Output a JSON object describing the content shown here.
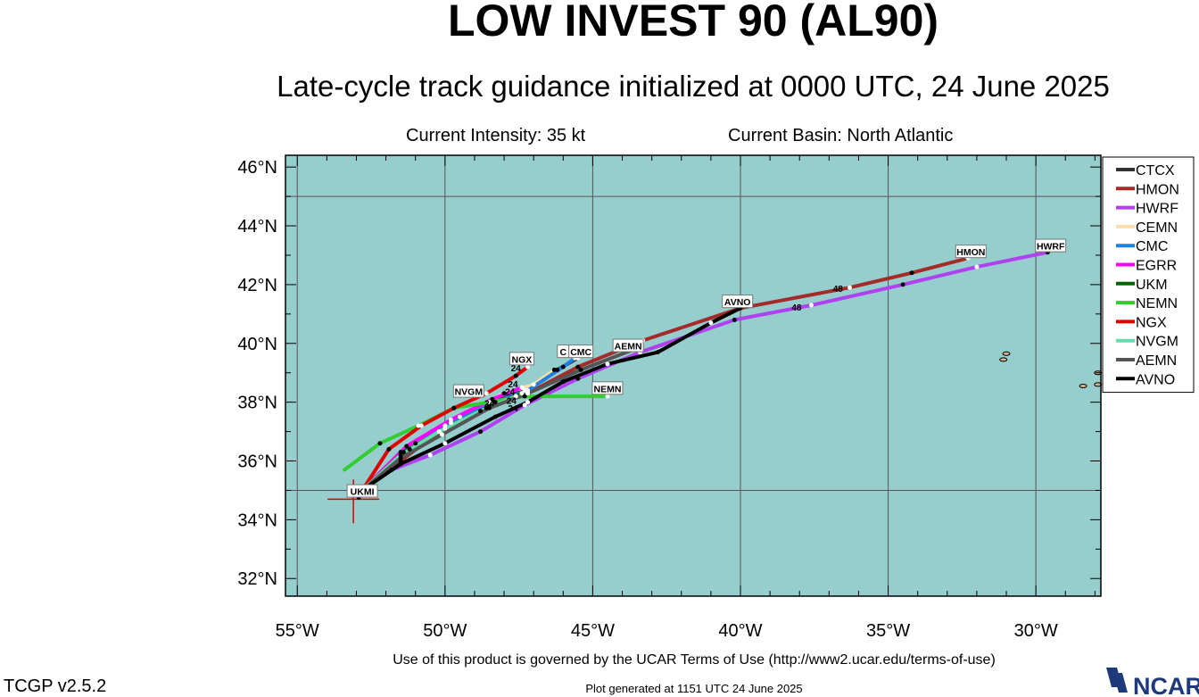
{
  "header": {
    "title": "LOW INVEST 90 (AL90)",
    "subtitle": "Late-cycle track guidance initialized at 0000 UTC, 24 June 2025",
    "intensity": "Current Intensity: 35 kt",
    "basin": "Current Basin: North Atlantic"
  },
  "footer": {
    "terms": "Use of this product is governed by the UCAR Terms of Use (http://www2.ucar.edu/terms-of-use)",
    "generated": "Plot generated at 1151 UTC   24 June 2025",
    "version": "TCGP v2.5.2",
    "logo_text": "NCAR"
  },
  "chart_data": {
    "type": "line",
    "x_axis": {
      "range": [
        -55.4,
        -27.8
      ],
      "ticks": [
        -55,
        -50,
        -45,
        -40,
        -35,
        -30
      ],
      "tick_labels": [
        "55°W",
        "50°W",
        "45°W",
        "40°W",
        "35°W",
        "30°W"
      ]
    },
    "y_axis": {
      "range": [
        31.4,
        46.4
      ],
      "ticks": [
        32,
        34,
        36,
        38,
        40,
        42,
        44,
        46
      ],
      "tick_labels": [
        "32°N",
        "34°N",
        "36°N",
        "38°N",
        "40°N",
        "42°N",
        "44°N",
        "46°N"
      ]
    },
    "grid": true,
    "colors": {
      "ocean": "#96cdcd",
      "grid": "#555555",
      "land": "#d2b48c"
    },
    "legend_position": "right",
    "initial_position": {
      "lon": -53.1,
      "lat": 34.7
    },
    "series": [
      {
        "name": "CTCX",
        "color": "#333333",
        "points": [
          [
            -52.8,
            35.0
          ],
          [
            -51.5,
            36.3
          ],
          [
            -50.0,
            37.2
          ],
          [
            -48.5,
            38.0
          ],
          [
            -47.3,
            38.4
          ],
          [
            -46.2,
            39.1
          ],
          [
            -45.5,
            39.5
          ]
        ]
      },
      {
        "name": "HMON",
        "color": "#a52a2a",
        "points": [
          [
            -52.8,
            35.0
          ],
          [
            -51.5,
            36.0
          ],
          [
            -50.2,
            37.0
          ],
          [
            -48.5,
            37.9
          ],
          [
            -47.2,
            38.3
          ],
          [
            -45.5,
            39.2
          ],
          [
            -43.3,
            40.1
          ],
          [
            -40.0,
            41.2
          ],
          [
            -36.3,
            41.9
          ],
          [
            -34.2,
            42.4
          ],
          [
            -32.3,
            42.9
          ]
        ]
      },
      {
        "name": "HWRF",
        "color": "#b040f0",
        "points": [
          [
            -52.8,
            35.0
          ],
          [
            -51.8,
            35.7
          ],
          [
            -50.5,
            36.2
          ],
          [
            -48.8,
            37.0
          ],
          [
            -47.3,
            37.9
          ],
          [
            -45.5,
            38.8
          ],
          [
            -43.4,
            39.7
          ],
          [
            -40.2,
            40.8
          ],
          [
            -37.6,
            41.3
          ],
          [
            -34.5,
            42.0
          ],
          [
            -32.0,
            42.6
          ],
          [
            -29.6,
            43.1
          ]
        ]
      },
      {
        "name": "CEMN",
        "color": "#ffdead",
        "points": [
          [
            -52.8,
            35.0
          ],
          [
            -51.0,
            36.6
          ],
          [
            -49.5,
            37.5
          ],
          [
            -48.0,
            38.3
          ],
          [
            -47.0,
            38.6
          ],
          [
            -46.3,
            39.1
          ]
        ]
      },
      {
        "name": "CMC",
        "color": "#2080e0",
        "points": [
          [
            -52.8,
            35.0
          ],
          [
            -51.2,
            36.4
          ],
          [
            -49.8,
            37.3
          ],
          [
            -48.3,
            38.0
          ],
          [
            -47.2,
            38.4
          ],
          [
            -46.0,
            39.2
          ],
          [
            -45.6,
            39.5
          ]
        ]
      },
      {
        "name": "EGRR",
        "color": "#ff00ff",
        "points": [
          [
            -52.8,
            35.0
          ],
          [
            -51.3,
            36.5
          ],
          [
            -49.8,
            37.4
          ],
          [
            -48.4,
            38.1
          ],
          [
            -47.4,
            38.5
          ]
        ]
      },
      {
        "name": "UKM",
        "color": "#006400",
        "points": [
          [
            -52.8,
            35.0
          ],
          [
            -51.4,
            36.3
          ],
          [
            -50.0,
            37.1
          ],
          [
            -48.6,
            37.8
          ],
          [
            -47.4,
            38.3
          ]
        ]
      },
      {
        "name": "NEMN",
        "color": "#32cd32",
        "points": [
          [
            -53.4,
            35.7
          ],
          [
            -52.2,
            36.6
          ],
          [
            -50.9,
            37.2
          ],
          [
            -49.7,
            37.8
          ],
          [
            -48.5,
            38.0
          ],
          [
            -47.3,
            38.2
          ],
          [
            -44.5,
            38.2
          ]
        ]
      },
      {
        "name": "NGX",
        "color": "#e00000",
        "points": [
          [
            -52.8,
            35.0
          ],
          [
            -51.9,
            36.4
          ],
          [
            -50.8,
            37.2
          ],
          [
            -49.7,
            37.8
          ],
          [
            -48.6,
            38.3
          ],
          [
            -47.6,
            38.9
          ],
          [
            -47.2,
            39.2
          ]
        ]
      },
      {
        "name": "NVGM",
        "color": "#66ddaa",
        "points": [
          [
            -52.8,
            35.0
          ],
          [
            -51.5,
            36.2
          ],
          [
            -50.2,
            37.0
          ],
          [
            -48.8,
            37.7
          ],
          [
            -47.6,
            38.2
          ]
        ]
      },
      {
        "name": "AEMN",
        "color": "#555555",
        "points": [
          [
            -52.8,
            35.0
          ],
          [
            -51.5,
            36.1
          ],
          [
            -50.1,
            36.9
          ],
          [
            -48.5,
            37.8
          ],
          [
            -47.2,
            38.3
          ],
          [
            -45.4,
            39.1
          ],
          [
            -43.6,
            39.8
          ]
        ]
      },
      {
        "name": "AVNO",
        "color": "#000000",
        "points": [
          [
            -52.8,
            35.0
          ],
          [
            -51.5,
            35.9
          ],
          [
            -50.0,
            36.6
          ],
          [
            -48.3,
            37.5
          ],
          [
            -47.2,
            38.0
          ],
          [
            -46.0,
            38.7
          ],
          [
            -44.5,
            39.3
          ],
          [
            -42.8,
            39.7
          ],
          [
            -41.0,
            40.7
          ],
          [
            -40.0,
            41.2
          ]
        ]
      }
    ],
    "track_labels": [
      {
        "text": "NGX",
        "lon": -47.4,
        "lat": 39.45
      },
      {
        "text": "C",
        "lon": -46.0,
        "lat": 39.7
      },
      {
        "text": "CMC",
        "lon": -45.4,
        "lat": 39.7
      },
      {
        "text": "AEMN",
        "lon": -43.8,
        "lat": 39.9
      },
      {
        "text": "AVNO",
        "lon": -40.1,
        "lat": 41.4
      },
      {
        "text": "HMON",
        "lon": -32.2,
        "lat": 43.1
      },
      {
        "text": "HWRF",
        "lon": -29.5,
        "lat": 43.3
      },
      {
        "text": "NVGM",
        "lon": -49.2,
        "lat": 38.35
      },
      {
        "text": "NEMN",
        "lon": -44.5,
        "lat": 38.45
      },
      {
        "text": "UKMI",
        "lon": -52.8,
        "lat": 34.95
      }
    ],
    "hour_labels": [
      {
        "text": "24",
        "lon": -47.6,
        "lat": 39.05
      },
      {
        "text": "24",
        "lon": -47.7,
        "lat": 38.5
      },
      {
        "text": "24",
        "lon": -47.8,
        "lat": 38.25
      },
      {
        "text": "24",
        "lon": -47.75,
        "lat": 37.95
      },
      {
        "text": "24",
        "lon": -47.7,
        "lat": 37.68
      },
      {
        "text": "24",
        "lon": -48.5,
        "lat": 37.85
      },
      {
        "text": "48",
        "lon": -38.1,
        "lat": 41.12
      },
      {
        "text": "48",
        "lon": -36.7,
        "lat": 41.75
      }
    ],
    "islands": [
      {
        "lon": -31.1,
        "lat": 39.45
      },
      {
        "lon": -31.0,
        "lat": 39.65
      },
      {
        "lon": -28.4,
        "lat": 38.55
      },
      {
        "lon": -27.9,
        "lat": 38.6
      },
      {
        "lon": -27.9,
        "lat": 39.0
      }
    ]
  }
}
